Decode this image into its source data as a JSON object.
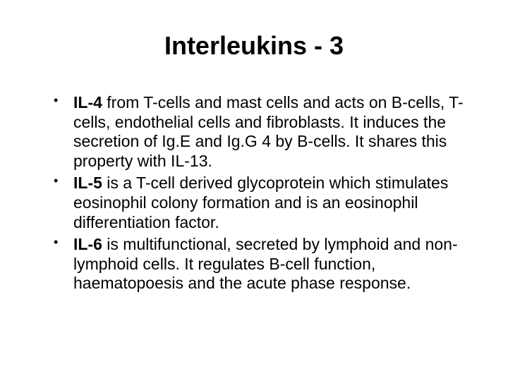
{
  "background_color": "#ffffff",
  "text_color": "#000000",
  "font_family": "Comic Sans MS",
  "title": "Interleukins - 3",
  "title_fontsize": 36,
  "body_fontsize": 23,
  "bullets": [
    {
      "bold": "IL-4 ",
      "rest": "from T-cells and mast cells and acts on B-cells, T-cells, endothelial cells and fibroblasts. It induces the secretion of Ig.E and Ig.G 4 by B-cells. It shares this property with IL-13."
    },
    {
      "bold": "IL-5 ",
      "rest": "is a T-cell derived glycoprotein which stimulates eosinophil colony formation and is an eosinophil differentiation factor."
    },
    {
      "bold": "IL-6 ",
      "rest": "is multifunctional, secreted by lymphoid and non-lymphoid cells.  It regulates B-cell function, haematopoesis and the acute phase response."
    }
  ]
}
